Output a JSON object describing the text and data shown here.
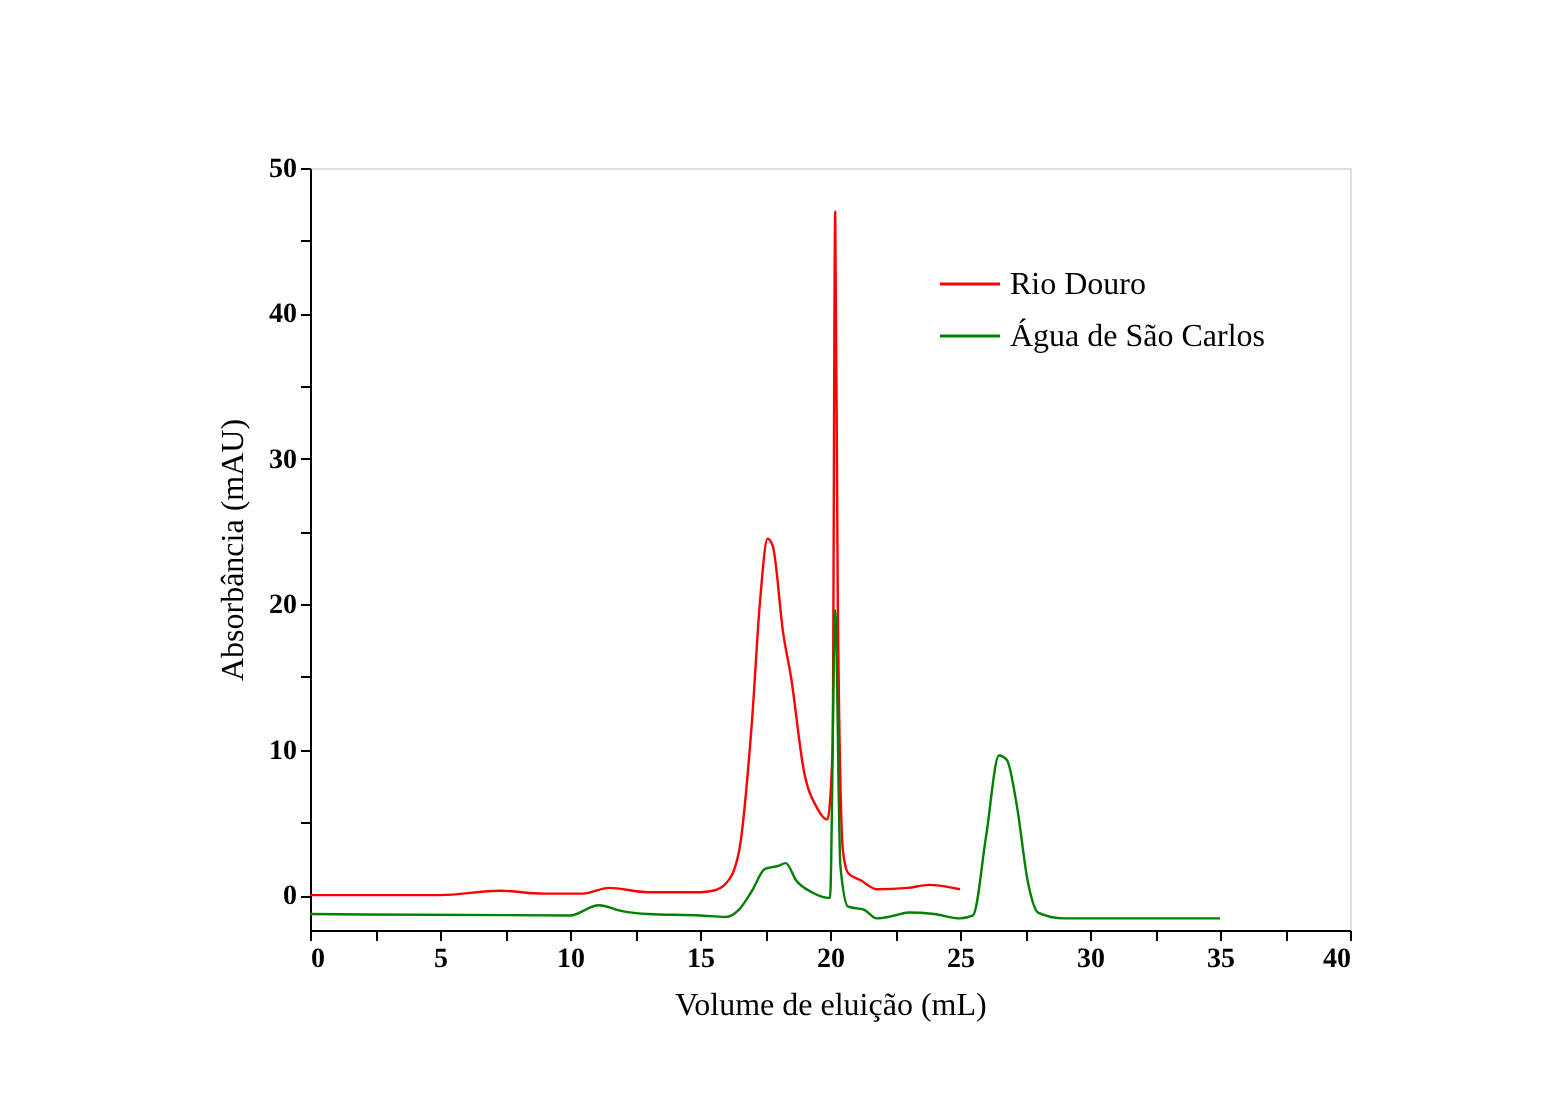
{
  "chart_data": {
    "type": "line",
    "xlabel": "Volume de eluição (mL)",
    "ylabel": "Absorbância (mAU)",
    "xlim": [
      0,
      40
    ],
    "xticks": [
      0,
      {
        "value": 2.5,
        "label": null
      },
      5,
      {
        "value": 7.5,
        "label": null
      },
      10,
      {
        "value": 12.5,
        "label": null
      },
      15,
      {
        "value": 17.5,
        "label": null
      },
      20,
      {
        "value": 22.5,
        "label": null
      },
      25,
      {
        "value": 27.5,
        "label": null
      },
      30,
      {
        "value": 32.5,
        "label": null
      },
      35,
      {
        "value": 37.5,
        "label": null
      },
      40
    ],
    "ylim": [
      -2.4,
      50
    ],
    "yticks": [
      0,
      {
        "value": 5,
        "label": null
      },
      10,
      {
        "value": 15,
        "label": null
      },
      20,
      {
        "value": 25,
        "label": null
      },
      30,
      {
        "value": 35,
        "label": null
      },
      40,
      {
        "value": 45,
        "label": null
      },
      50
    ],
    "grid": false,
    "legend": "top right",
    "marker": "none",
    "line_style": "solid",
    "series": [
      {
        "name": "Rio Douro",
        "color": "#ff0000",
        "x": [
          0,
          5,
          7.3,
          9,
          10.5,
          11.5,
          13,
          15,
          15.5,
          16,
          16.5,
          17,
          17.3,
          17.6,
          17.8,
          18.2,
          18.5,
          19,
          19.5,
          19.9,
          20.1,
          20.2,
          20.3,
          20.5,
          20.7,
          21.2,
          21.8,
          23,
          23.8,
          25
        ],
        "values": [
          0,
          0,
          0.3,
          0.1,
          0.1,
          0.5,
          0.2,
          0.2,
          0.3,
          0.8,
          3,
          12,
          20,
          24.5,
          24,
          18,
          15,
          8.5,
          6,
          5.2,
          10,
          47,
          20,
          3,
          1.5,
          1.0,
          0.4,
          0.5,
          0.7,
          0.4
        ]
      },
      {
        "name": "Água de São Carlos",
        "color": "#008000",
        "x": [
          0,
          10,
          11.1,
          12,
          13,
          15,
          16,
          16.5,
          17,
          17.5,
          18,
          18.3,
          18.7,
          19.3,
          20,
          20.2,
          20.4,
          20.7,
          21.3,
          21.8,
          22.5,
          23,
          24,
          25,
          25.5,
          26,
          26.5,
          26.8,
          27.2,
          27.6,
          28,
          29,
          35
        ],
        "values": [
          -1.3,
          -1.4,
          -0.7,
          -1.1,
          -1.3,
          -1.4,
          -1.5,
          -1,
          0.3,
          1.8,
          2.0,
          2.2,
          1.0,
          0.2,
          -0.2,
          19.6,
          2,
          -0.8,
          -1,
          -1.6,
          -1.4,
          -1.2,
          -1.3,
          -1.6,
          -1.4,
          4,
          9.6,
          9.3,
          6,
          1,
          -1.2,
          -1.6,
          -1.6
        ]
      }
    ]
  }
}
